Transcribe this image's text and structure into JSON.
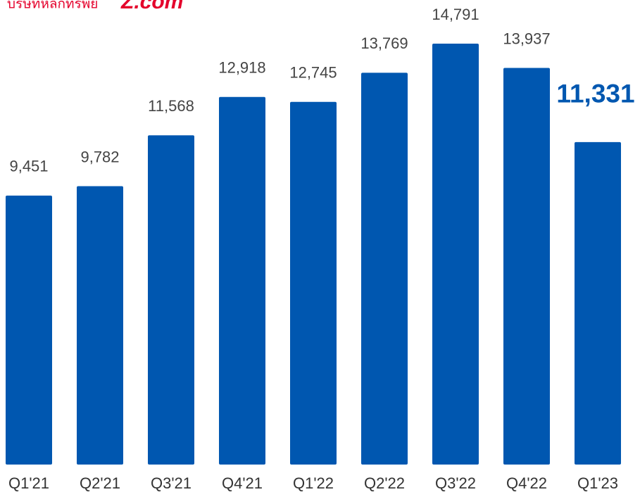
{
  "logo": {
    "name": "บริษัทหลักทรัพย์",
    "brand": "Z.com"
  },
  "chart_data": {
    "type": "bar",
    "categories": [
      "Q1'21",
      "Q2'21",
      "Q3'21",
      "Q4'21",
      "Q1'22",
      "Q2'22",
      "Q3'22",
      "Q4'22",
      "Q1'23"
    ],
    "values": [
      9451,
      9782,
      11568,
      12918,
      12745,
      13769,
      14791,
      13937,
      11331
    ],
    "value_labels": [
      "9,451",
      "9,782",
      "11,568",
      "12,918",
      "12,745",
      "13,769",
      "14,791",
      "13,937",
      "11,331"
    ],
    "value_label_colors": [
      "#444444",
      "#444444",
      "#444444",
      "#444444",
      "#444444",
      "#444444",
      "#444444",
      "#444444",
      "#0057b0"
    ],
    "color": "#0057b0",
    "ylim": [
      0,
      16300
    ]
  }
}
